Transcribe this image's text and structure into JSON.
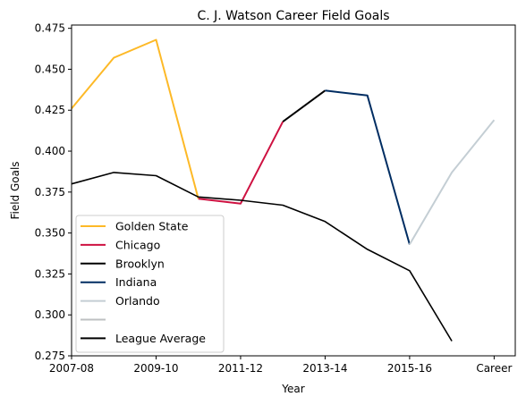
{
  "chart_data": {
    "type": "line",
    "title": "C. J. Watson Career Field Goals",
    "xlabel": "Year",
    "ylabel": "Field Goals",
    "x_ticks": [
      "2007-08",
      "2009-10",
      "2011-12",
      "2013-14",
      "2015-16",
      "Career"
    ],
    "xlim": [
      0,
      10.5
    ],
    "ylim": [
      0.275,
      0.477
    ],
    "y_ticks": [
      0.275,
      0.3,
      0.325,
      0.35,
      0.375,
      0.4,
      0.425,
      0.45,
      0.475
    ],
    "y_tick_labels": [
      "0.275",
      "0.300",
      "0.325",
      "0.350",
      "0.375",
      "0.400",
      "0.425",
      "0.450",
      "0.475"
    ],
    "grid": false,
    "legend_position": "lower-left",
    "series": [
      {
        "name": "Golden State",
        "color": "#FDB927",
        "x": [
          0,
          1,
          2,
          3
        ],
        "y": [
          0.426,
          0.457,
          0.468,
          0.371
        ]
      },
      {
        "name": "Chicago",
        "color": "#CE1141",
        "x": [
          3,
          4,
          5
        ],
        "y": [
          0.371,
          0.368,
          0.418
        ]
      },
      {
        "name": "Brooklyn",
        "color": "#000000",
        "x": [
          5,
          6
        ],
        "y": [
          0.418,
          0.437
        ]
      },
      {
        "name": "Indiana",
        "color": "#002D62",
        "x": [
          6,
          7,
          8
        ],
        "y": [
          0.437,
          0.434,
          0.343
        ]
      },
      {
        "name": "Orlando",
        "color": "#C4CED4",
        "x": [
          8,
          9,
          10
        ],
        "y": [
          0.343,
          0.387,
          0.419
        ]
      },
      {
        "name": "",
        "color": "#BEC0C2",
        "x": [],
        "y": []
      },
      {
        "name": "League Average",
        "color": "#000000",
        "x": [
          0,
          1,
          2,
          3,
          4,
          5,
          6,
          7,
          8,
          9
        ],
        "y": [
          0.38,
          0.387,
          0.385,
          0.372,
          0.37,
          0.367,
          0.357,
          0.34,
          0.327,
          0.284
        ]
      }
    ]
  }
}
